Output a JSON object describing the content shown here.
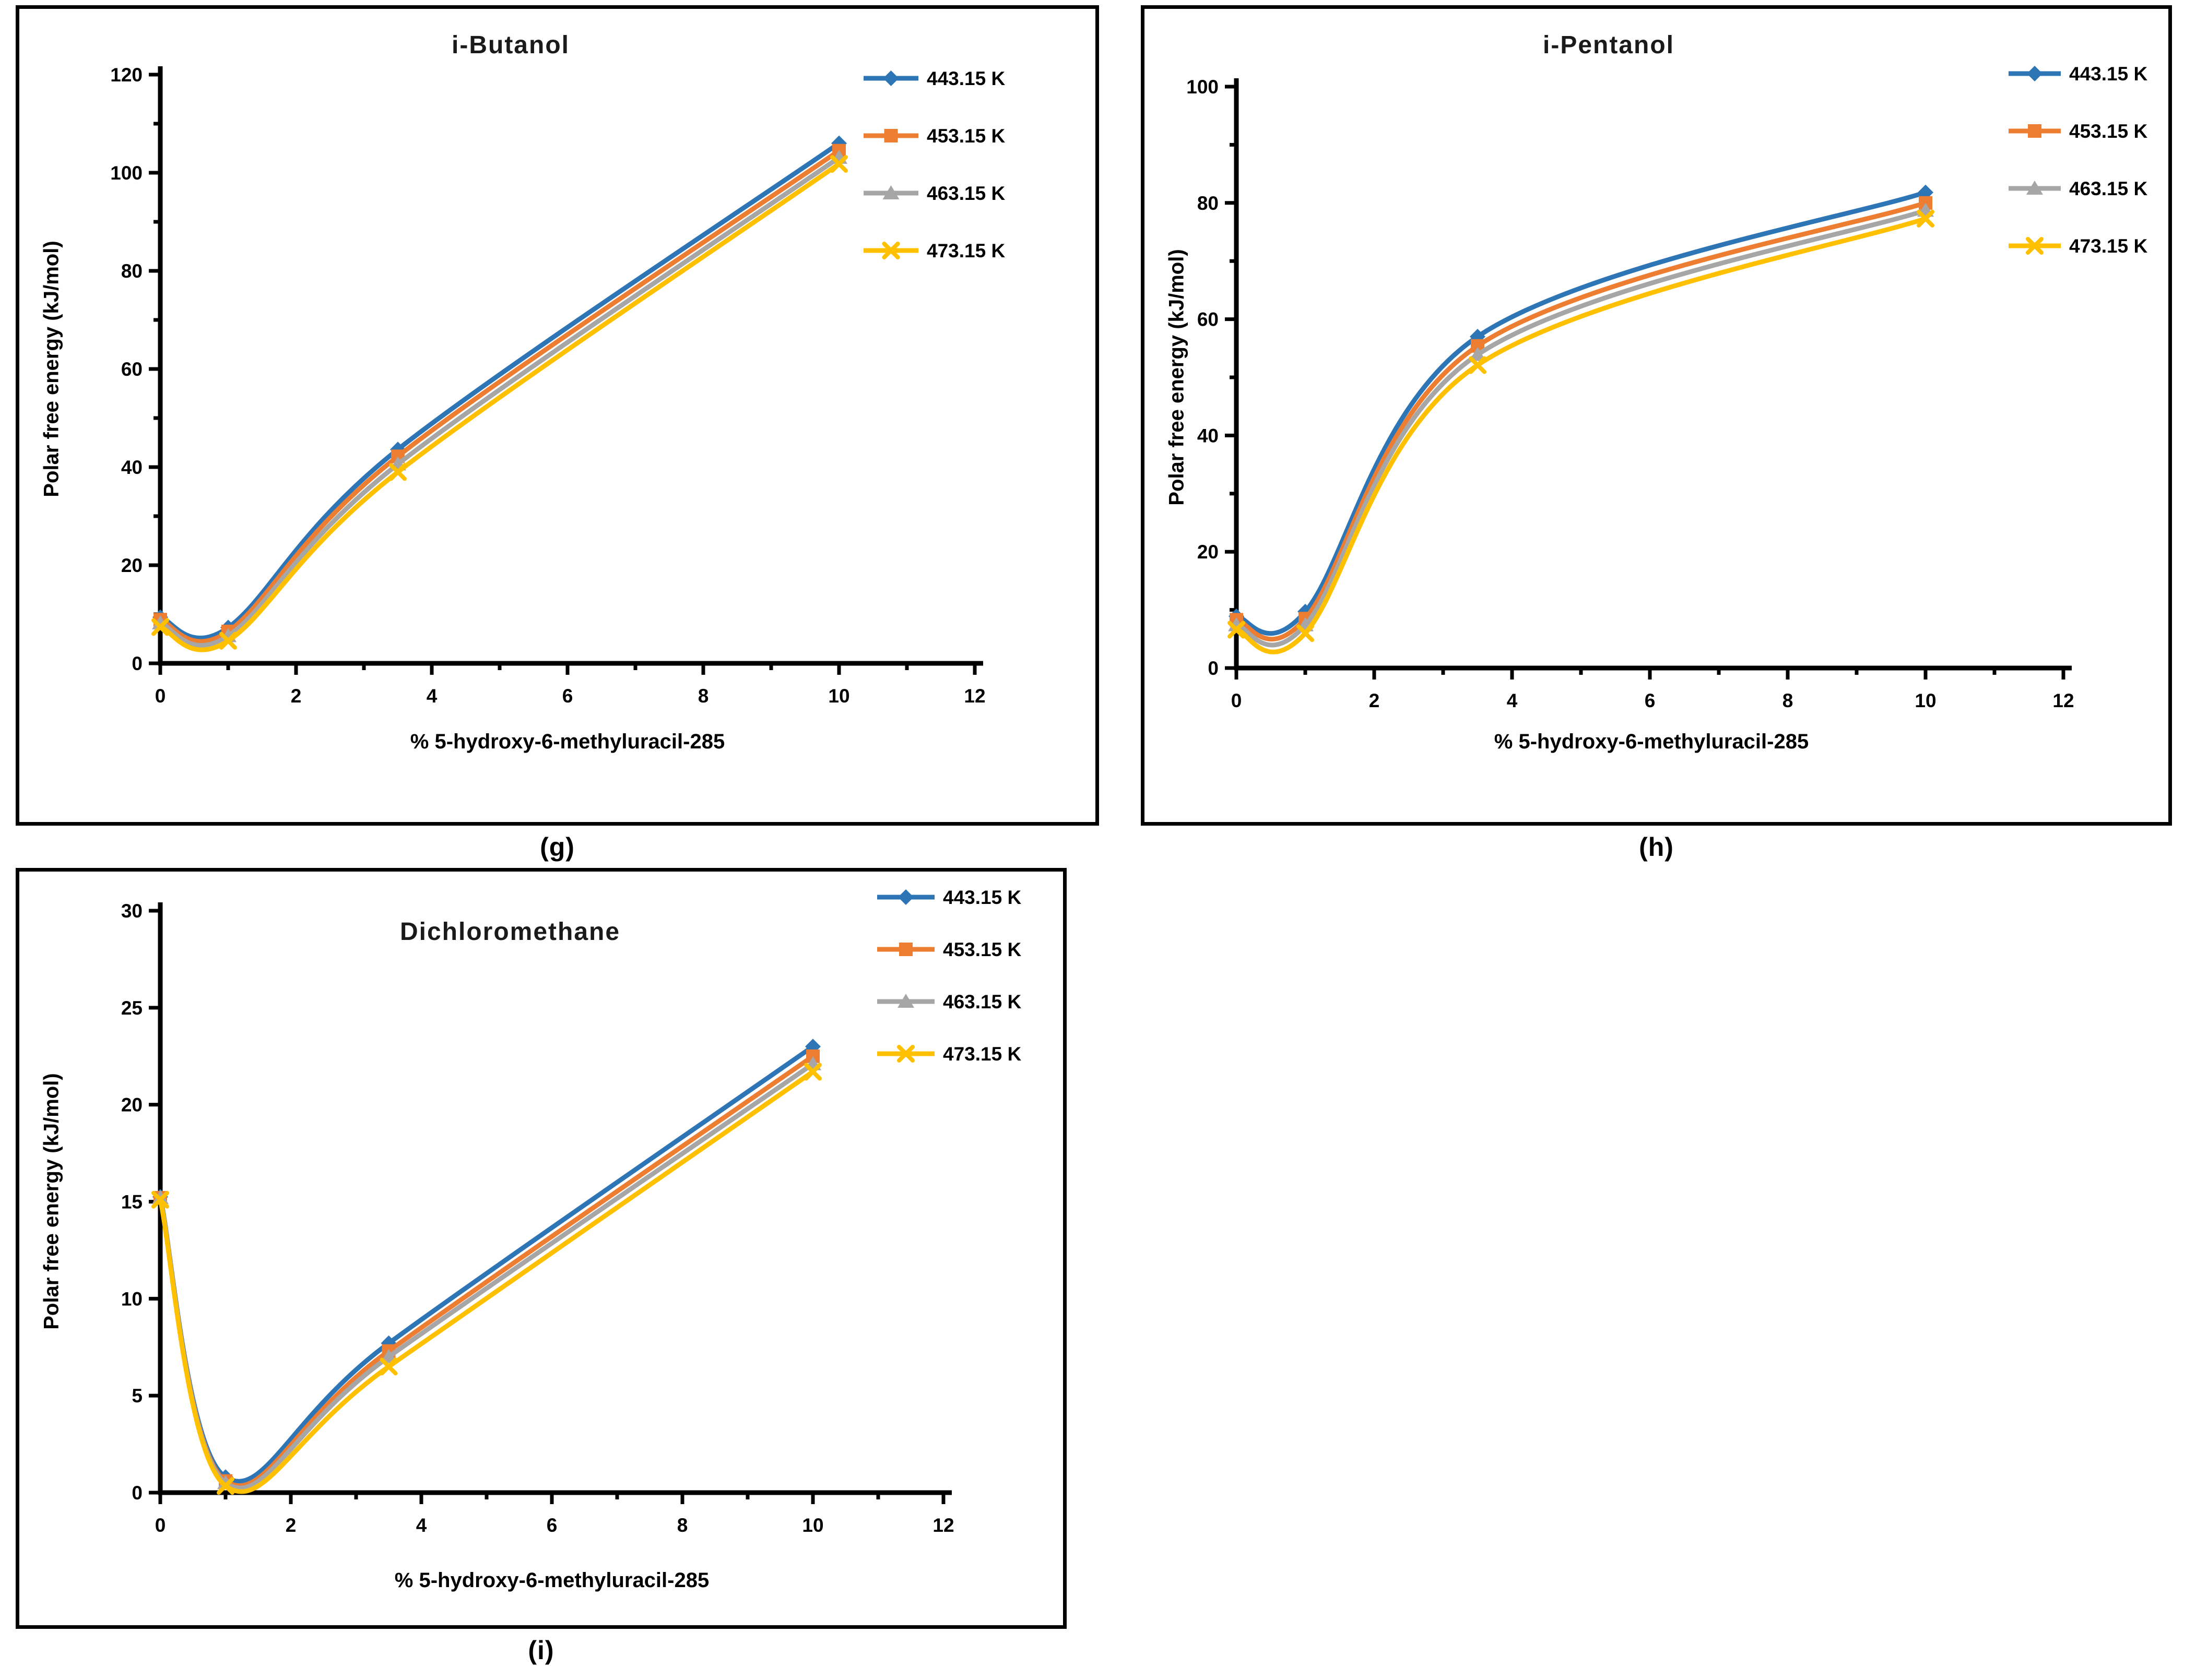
{
  "page": {
    "background": "#ffffff",
    "text_color": "#000000"
  },
  "chart_data": [
    {
      "panel_label": "(g)",
      "type": "line",
      "title": "i-Butanol",
      "x_label": "% 5-hydroxy-6-methyluracil-285",
      "y_label": "Polar free energy (kJ/mol)",
      "x": [
        0,
        1,
        3.5,
        10
      ],
      "x_max": 12,
      "y_max": 120,
      "x_ticks": [
        0,
        2,
        4,
        6,
        8,
        10,
        12
      ],
      "x_minor_ticks": [
        1,
        3,
        5,
        7,
        9,
        11
      ],
      "y_ticks": [
        0,
        20,
        40,
        60,
        80,
        100,
        120
      ],
      "y_minor_ticks": [
        10,
        30,
        50,
        70,
        90,
        110
      ],
      "grid": false,
      "smooth": true,
      "legend_position": "right-top",
      "series": [
        {
          "name": "443.15 K",
          "color": "#2E75B6",
          "marker": "diamond",
          "values": [
            9.4,
            7.3,
            43.6,
            106.0
          ]
        },
        {
          "name": "453.15 K",
          "color": "#ED7D31",
          "marker": "square",
          "values": [
            8.9,
            6.5,
            42.2,
            104.5
          ]
        },
        {
          "name": "463.15 K",
          "color": "#A6A6A6",
          "marker": "triangle",
          "values": [
            8.2,
            5.6,
            40.6,
            103.1
          ]
        },
        {
          "name": "473.15 K",
          "color": "#FFC000",
          "marker": "x",
          "values": [
            7.4,
            4.6,
            39.0,
            101.8
          ]
        }
      ]
    },
    {
      "panel_label": "(h)",
      "type": "line",
      "title": "i-Pentanol",
      "x_label": "% 5-hydroxy-6-methyluracil-285",
      "y_label": "Polar free energy (kJ/mol)",
      "x": [
        0,
        1,
        3.5,
        10
      ],
      "x_max": 12,
      "y_max": 100,
      "x_ticks": [
        0,
        2,
        4,
        6,
        8,
        10,
        12
      ],
      "x_minor_ticks": [
        1,
        3,
        5,
        7,
        9,
        11
      ],
      "y_ticks": [
        0,
        20,
        40,
        60,
        80,
        100
      ],
      "y_minor_ticks": [
        10,
        30,
        50,
        70,
        90
      ],
      "grid": false,
      "smooth": true,
      "legend_position": "right-top",
      "series": [
        {
          "name": "443.15 K",
          "color": "#2E75B6",
          "marker": "diamond",
          "values": [
            8.9,
            9.7,
            57.0,
            81.8
          ]
        },
        {
          "name": "453.15 K",
          "color": "#ED7D31",
          "marker": "square",
          "values": [
            8.3,
            8.5,
            55.4,
            80.0
          ]
        },
        {
          "name": "463.15 K",
          "color": "#A6A6A6",
          "marker": "triangle",
          "values": [
            7.4,
            7.4,
            53.9,
            78.7
          ]
        },
        {
          "name": "473.15 K",
          "color": "#FFC000",
          "marker": "x",
          "values": [
            6.6,
            6.0,
            52.1,
            77.3
          ]
        }
      ]
    },
    {
      "panel_label": "(i)",
      "type": "line",
      "title": "Dichloromethane",
      "x_label": "% 5-hydroxy-6-methyluracil-285",
      "y_label": "Polar free energy (kJ/mol)",
      "x": [
        0,
        1,
        3.5,
        10
      ],
      "x_max": 12,
      "y_max": 30,
      "x_ticks": [
        0,
        2,
        4,
        6,
        8,
        10,
        12
      ],
      "x_minor_ticks": [
        1,
        3,
        5,
        7,
        9,
        11
      ],
      "y_ticks": [
        0,
        5,
        10,
        15,
        20,
        25,
        30
      ],
      "y_minor_ticks": [],
      "grid": false,
      "smooth": true,
      "legend_position": "right-top-inside",
      "series": [
        {
          "name": "443.15 K",
          "color": "#2E75B6",
          "marker": "diamond",
          "values": [
            15.25,
            0.8,
            7.7,
            23.0
          ]
        },
        {
          "name": "453.15 K",
          "color": "#ED7D31",
          "marker": "square",
          "values": [
            15.2,
            0.6,
            7.3,
            22.5
          ]
        },
        {
          "name": "463.15 K",
          "color": "#A6A6A6",
          "marker": "triangle",
          "values": [
            15.2,
            0.5,
            7.0,
            22.1
          ]
        },
        {
          "name": "473.15 K",
          "color": "#FFC000",
          "marker": "x",
          "values": [
            15.1,
            0.35,
            6.5,
            21.7
          ]
        }
      ]
    }
  ]
}
